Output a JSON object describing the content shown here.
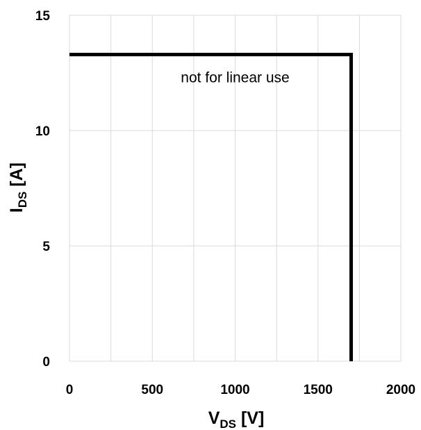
{
  "chart_data": {
    "type": "line",
    "xlabel": {
      "main": "V",
      "sub": "DS",
      "unit": " [V]"
    },
    "ylabel": {
      "main": "I",
      "sub": "DS",
      "unit": " [A]"
    },
    "xlim": [
      0,
      2000
    ],
    "ylim": [
      0,
      15
    ],
    "x_ticks": [
      0,
      500,
      1000,
      1500,
      2000
    ],
    "y_ticks": [
      0,
      5,
      10,
      15
    ],
    "x_tick_labels": [
      "0",
      "500",
      "1000",
      "1500",
      "2000"
    ],
    "y_tick_labels": [
      "0",
      "5",
      "10",
      "15"
    ],
    "x_gridlines": [
      250,
      500,
      750,
      1000,
      1250,
      1500,
      1750,
      2000
    ],
    "y_gridlines": [
      5,
      10,
      15
    ],
    "grid": true,
    "legend": "none",
    "series": [
      {
        "points": [
          [
            0,
            13.3
          ],
          [
            1700,
            13.3
          ],
          [
            1700,
            0
          ]
        ]
      }
    ],
    "annotations": [
      {
        "text": "not for linear use",
        "x": 1000,
        "y": 12.1
      }
    ]
  }
}
